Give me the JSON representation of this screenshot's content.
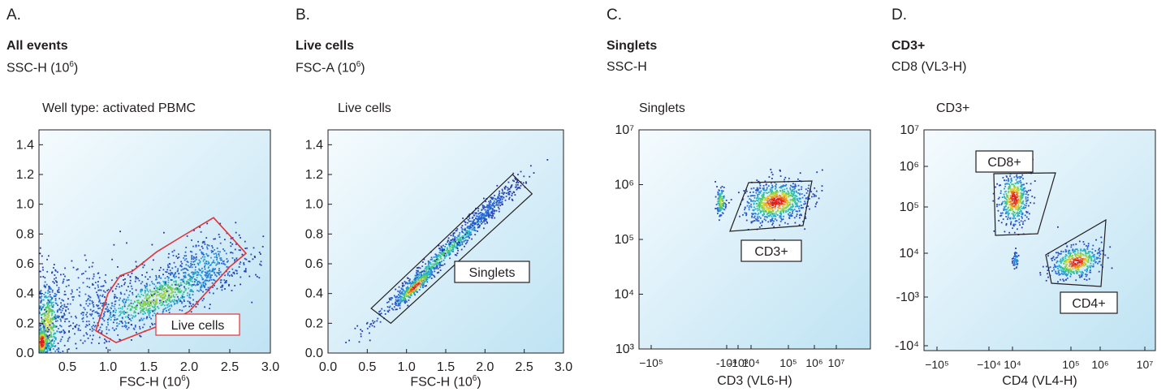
{
  "chart_data": [
    {
      "type": "scatter",
      "letter": "A.",
      "title": "All events",
      "ylabel_main": "SSC-H (10",
      "ylabel_exp": "6",
      "ylabel_close": ")",
      "plot_label": "Well type: activated PBMC",
      "xlabel_main": "FSC-H (10",
      "xlabel_exp": "6",
      "xlabel_close": ")",
      "xlim": [
        0.15,
        3.0
      ],
      "ylim": [
        0.0,
        1.5
      ],
      "xticks": [
        "0.5",
        "1.0",
        "1.5",
        "2.0",
        "2.5",
        "3.0"
      ],
      "yticks": [
        "0.0",
        "0.2",
        "0.4",
        "0.6",
        "0.8",
        "1.0",
        "1.2",
        "1.4"
      ],
      "gate": {
        "label": "Live cells",
        "color": "#e0343a"
      }
    },
    {
      "type": "scatter",
      "letter": "B.",
      "title": "Live cells",
      "ylabel_main": "FSC-A (10",
      "ylabel_exp": "6",
      "ylabel_close": ")",
      "plot_label": "Live cells",
      "xlabel_main": "FSC-H (10",
      "xlabel_exp": "6",
      "xlabel_close": ")",
      "xlim": [
        0.0,
        3.0
      ],
      "ylim": [
        0.0,
        1.5
      ],
      "xticks": [
        "0.0",
        "0.5",
        "1.0",
        "1.5",
        "2.0",
        "2.5",
        "3.0"
      ],
      "yticks": [
        "0.0",
        "0.2",
        "0.4",
        "0.6",
        "0.8",
        "1.0",
        "1.2",
        "1.4"
      ],
      "gate": {
        "label": "Singlets",
        "color": "#231f20"
      }
    },
    {
      "type": "scatter",
      "letter": "C.",
      "title": "Singlets",
      "ylabel_main": "SSC-H",
      "plot_label": "Singlets",
      "xlabel_main": "CD3 (VL6-H)",
      "xscale": "biexponential",
      "yscale": "log",
      "xticks": [
        "−10⁵",
        "-10⁴",
        "-10³",
        "10⁴",
        "10⁵",
        "10⁶",
        "10⁷"
      ],
      "yticks": [
        "10³",
        "10⁴",
        "10⁵",
        "10⁶",
        "10⁷"
      ],
      "gate": {
        "label": "CD3+",
        "color": "#231f20"
      }
    },
    {
      "type": "scatter",
      "letter": "D.",
      "title": "CD3+",
      "ylabel_main": "CD8 (VL3-H)",
      "plot_label": "CD3+",
      "xlabel_main": "CD4 (VL4-H)",
      "xscale": "biexponential",
      "yscale": "biexponential",
      "xticks": [
        "−10⁵",
        "−10⁴",
        "10⁴",
        "10⁵",
        "10⁶",
        "10⁷"
      ],
      "yticks": [
        "-10⁴",
        "-10³",
        "10⁴",
        "10⁵",
        "10⁶",
        "10⁷"
      ],
      "gates": [
        {
          "label": "CD8+",
          "color": "#231f20"
        },
        {
          "label": "CD4+",
          "color": "#231f20"
        }
      ]
    }
  ]
}
